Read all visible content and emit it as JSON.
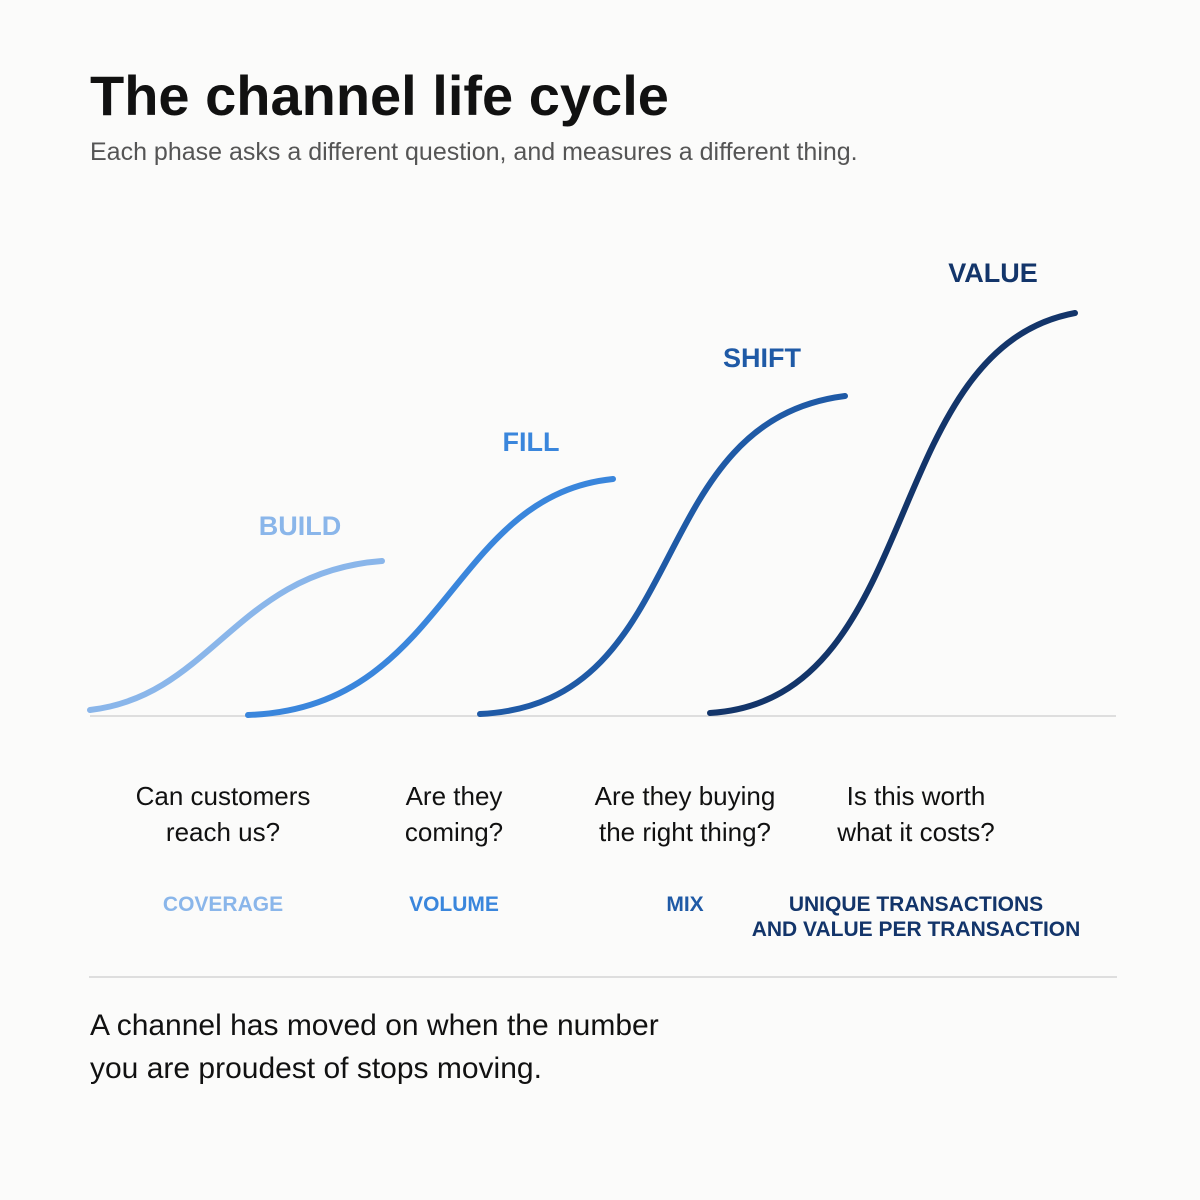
{
  "header": {
    "title": "The channel life cycle",
    "subtitle": "Each phase asks a different question, and measures a different thing."
  },
  "phases": [
    {
      "name": "BUILD",
      "question_line1": "Can customers",
      "question_line2": "reach us?",
      "metric_line1": "COVERAGE",
      "metric_line2": "",
      "color": "#8ab6ea"
    },
    {
      "name": "FILL",
      "question_line1": "Are they",
      "question_line2": "coming?",
      "metric_line1": "VOLUME",
      "metric_line2": "",
      "color": "#3a86dc"
    },
    {
      "name": "SHIFT",
      "question_line1": "Are they buying",
      "question_line2": "the right thing?",
      "metric_line1": "MIX",
      "metric_line2": "",
      "color": "#1f5aa6"
    },
    {
      "name": "VALUE",
      "question_line1": "Is this worth",
      "question_line2": "what it costs?",
      "metric_line1": "UNIQUE TRANSACTIONS",
      "metric_line2": "AND VALUE PER TRANSACTION",
      "color": "#13356a"
    }
  ],
  "footer": {
    "line1": "A channel has moved on when the number",
    "line2": "you are proudest of stops moving."
  },
  "colors": {
    "baseline": "#dedede",
    "text": "#111111",
    "subtitle": "#555555"
  }
}
